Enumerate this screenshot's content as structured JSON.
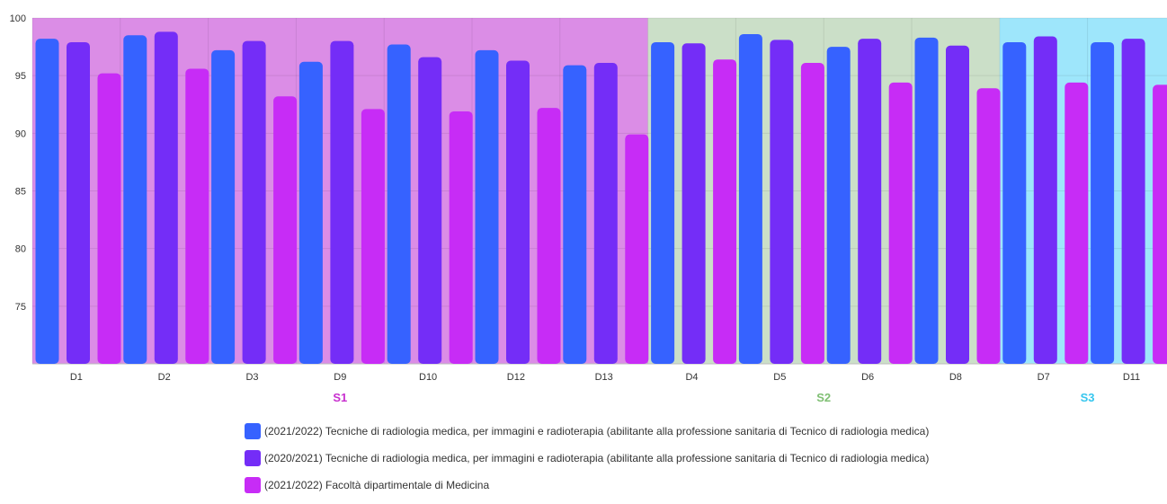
{
  "chart_data": {
    "type": "bar",
    "title": "",
    "xlabel": "",
    "ylabel": "",
    "ylim": [
      70,
      100
    ],
    "yticks": [
      75,
      80,
      85,
      90,
      95,
      100
    ],
    "grid": true,
    "legend_position": "bottom",
    "categories": [
      "D1",
      "D2",
      "D3",
      "D9",
      "D10",
      "D12",
      "D13",
      "D4",
      "D5",
      "D6",
      "D8",
      "D7",
      "D11"
    ],
    "groups": [
      {
        "label": "S1",
        "categories": [
          "D1",
          "D2",
          "D3",
          "D9",
          "D10",
          "D12",
          "D13"
        ],
        "band_color": "#db8de6",
        "label_color": "#c82fcf"
      },
      {
        "label": "S2",
        "categories": [
          "D4",
          "D5",
          "D6",
          "D8"
        ],
        "band_color": "#cbdfc8",
        "label_color": "#7fbf73"
      },
      {
        "label": "S3",
        "categories": [
          "D7",
          "D11"
        ],
        "band_color": "#9ee6fb",
        "label_color": "#36c6ee"
      }
    ],
    "series": [
      {
        "name": "(2021/2022) Tecniche di radiologia medica, per immagini e radioterapia (abilitante alla professione sanitaria di Tecnico di radiologia medica)",
        "color": "#3662ff",
        "values": [
          98.2,
          98.5,
          97.2,
          96.2,
          97.7,
          97.2,
          95.9,
          97.9,
          98.6,
          97.5,
          98.3,
          97.9,
          97.9
        ]
      },
      {
        "name": "(2020/2021) Tecniche di radiologia medica, per immagini e radioterapia (abilitante alla professione sanitaria di Tecnico di radiologia medica)",
        "color": "#742df7",
        "values": [
          97.9,
          98.8,
          98.0,
          98.0,
          96.6,
          96.3,
          96.1,
          97.8,
          98.1,
          98.2,
          97.6,
          98.4,
          98.2
        ]
      },
      {
        "name": "(2021/2022) Facoltà dipartimentale di Medicina",
        "color": "#c72cf6",
        "values": [
          95.2,
          95.6,
          93.2,
          92.1,
          91.9,
          92.2,
          89.9,
          96.4,
          96.1,
          94.4,
          93.9,
          94.4,
          94.2
        ]
      }
    ]
  }
}
